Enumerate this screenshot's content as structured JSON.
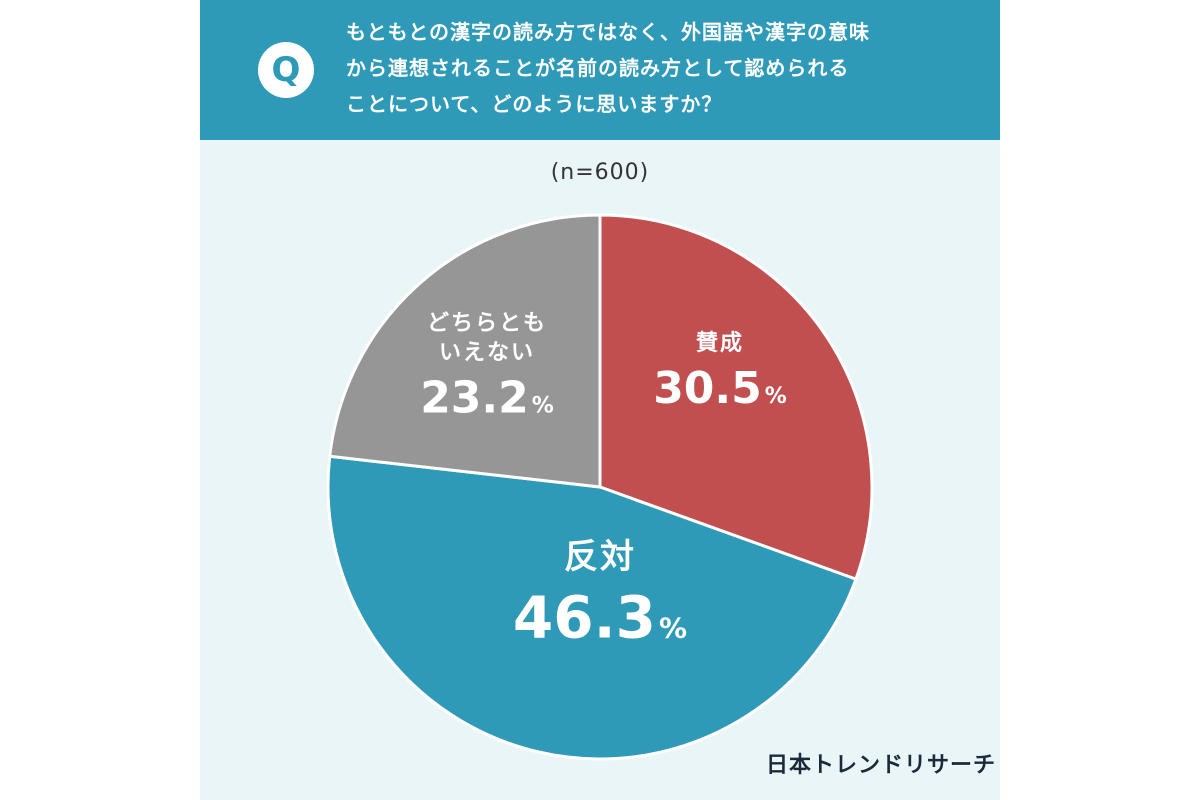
{
  "header": {
    "badge": "Q",
    "question_lines": [
      "もともとの漢字の読み方ではなく、外国語や漢字の意味",
      "から連想されることが名前の読み方として認められる",
      "ことについて、どのように思いますか？"
    ]
  },
  "sample_label": "(n=600)",
  "brand": "日本トレンドリサーチ",
  "colors": {
    "header_bg": "#2e9ab8",
    "panel_bg": "#eaf5f8",
    "agree": "#c24f4f",
    "oppose": "#2e9ab8",
    "neutral": "#969696",
    "label_text": "#ffffff"
  },
  "chart_data": {
    "type": "pie",
    "start": "12 o'clock, clockwise",
    "slices": [
      {
        "label": "賛成",
        "value": 30.5,
        "display": "30.5",
        "color": "#c24f4f"
      },
      {
        "label": "反対",
        "value": 46.3,
        "display": "46.3",
        "color": "#2e9ab8"
      },
      {
        "label": "どちらとも\nいえない",
        "value": 23.2,
        "display": "23.2",
        "color": "#969696"
      }
    ],
    "unit": "%"
  }
}
